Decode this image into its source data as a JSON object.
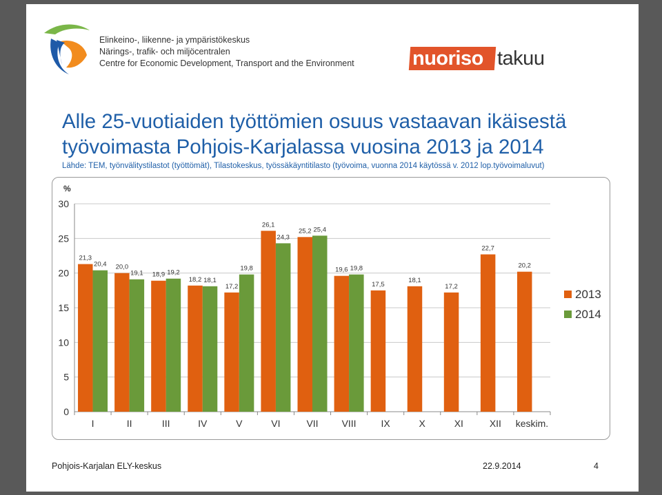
{
  "org": {
    "lines": [
      "Elinkeino-, liikenne- ja ympäristökeskus",
      "Närings-, trafik- och miljöcentralen",
      "Centre for Economic Development, Transport and the Environment"
    ]
  },
  "brand": {
    "part1": "nuoriso",
    "part2": "takuu"
  },
  "slide": {
    "title": "Alle 25-vuotiaiden työttömien osuus vastaavan ikäisestä työvoimasta Pohjois-Karjalassa vuosina 2013 ja 2014",
    "source": "Lähde: TEM, työnvälitystilastot (työttömät), Tilastokeskus, työssäkäyntitilasto (työvoima, vuonna 2014 käytössä v. 2012 lop.työvoimaluvut)"
  },
  "footer": {
    "left": "Pohjois-Karjalan ELY-keskus",
    "date": "22.9.2014",
    "page": "4"
  },
  "colors": {
    "series2013": "#e06010",
    "series2014": "#6a9a3a",
    "title": "#1f5fa8"
  },
  "chart_data": {
    "type": "bar",
    "ylabel": "%",
    "ylim": [
      0,
      30
    ],
    "yticks": [
      0,
      5,
      10,
      15,
      20,
      25,
      30
    ],
    "grid": true,
    "legend": "right",
    "categories": [
      "I",
      "II",
      "III",
      "IV",
      "V",
      "VI",
      "VII",
      "VIII",
      "IX",
      "X",
      "XI",
      "XII",
      "keskim."
    ],
    "series": [
      {
        "name": "2013",
        "values": [
          21.3,
          20.0,
          18.9,
          18.2,
          17.2,
          26.1,
          25.2,
          19.6,
          17.5,
          18.1,
          17.2,
          22.7,
          20.2
        ],
        "labels": [
          "21,3",
          "20,0",
          "18,9",
          "18,2",
          "17,2",
          "26,1",
          "25,2",
          "19,6",
          "17,5",
          "18,1",
          "17,2",
          "22,7",
          "20,2"
        ]
      },
      {
        "name": "2014",
        "values": [
          20.4,
          19.1,
          19.2,
          18.1,
          19.8,
          24.3,
          25.4,
          19.8,
          null,
          null,
          null,
          null,
          null
        ],
        "labels": [
          "20,4",
          "19,1",
          "19,2",
          "18,1",
          "19,8",
          "24,3",
          "25,4",
          "19,8",
          null,
          null,
          null,
          null,
          null
        ]
      }
    ]
  }
}
